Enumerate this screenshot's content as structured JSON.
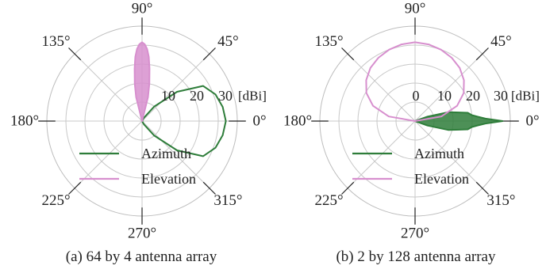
{
  "figure": {
    "captions": [
      "(a) 64 by 4 antenna array",
      "(b) 2 by 128 antenna array"
    ]
  },
  "colors": {
    "azimuth": "#2e7d3a",
    "elevation": "#d78fce",
    "grid": "#c8c8c8",
    "axis": "#222222"
  },
  "chart_data": [
    {
      "type": "polar-line",
      "caption": "(a) 64 by 4 antenna array",
      "angle_ticks": [
        "0°",
        "45°",
        "90°",
        "135°",
        "180°",
        "225°",
        "270°",
        "315°"
      ],
      "angle_tick_values_deg": [
        0,
        45,
        90,
        135,
        180,
        225,
        270,
        315
      ],
      "radial_tick_labels": [
        "10",
        "20",
        "30"
      ],
      "radial_tick_values": [
        10,
        20,
        30
      ],
      "radial_unit": "[dBi]",
      "rlim": [
        -10,
        40
      ],
      "grid": true,
      "legend": {
        "placement": "lower-center",
        "entries": [
          "Azimuth",
          "Elevation"
        ]
      },
      "series": [
        {
          "name": "Azimuth",
          "color": "#2e7d3a",
          "points_deg_dbi": [
            [
              -90,
              -10
            ],
            [
              -75,
              -10
            ],
            [
              -60,
              -8
            ],
            [
              -50,
              0
            ],
            [
              -40,
              14
            ],
            [
              -30,
              27
            ],
            [
              -20,
              31
            ],
            [
              -10,
              33
            ],
            [
              0,
              34
            ],
            [
              10,
              33
            ],
            [
              20,
              31
            ],
            [
              30,
              27
            ],
            [
              40,
              14
            ],
            [
              50,
              0
            ],
            [
              60,
              -8
            ],
            [
              75,
              -10
            ],
            [
              90,
              -10
            ]
          ]
        },
        {
          "name": "Elevation",
          "color": "#d78fce",
          "points_deg_dbi": [
            [
              70,
              -10
            ],
            [
              76,
              3
            ],
            [
              79,
              10
            ],
            [
              82,
              18
            ],
            [
              84,
              24
            ],
            [
              86,
              28
            ],
            [
              88,
              30.5
            ],
            [
              90,
              31.5
            ],
            [
              92,
              30.5
            ],
            [
              94,
              28
            ],
            [
              96,
              24
            ],
            [
              98,
              18
            ],
            [
              101,
              10
            ],
            [
              104,
              3
            ],
            [
              110,
              -10
            ]
          ]
        }
      ]
    },
    {
      "type": "polar-line",
      "caption": "(b) 2 by 128 antenna array",
      "angle_ticks": [
        "0°",
        "45°",
        "90°",
        "135°",
        "180°",
        "225°",
        "270°",
        "315°"
      ],
      "angle_tick_values_deg": [
        0,
        45,
        90,
        135,
        180,
        225,
        270,
        315
      ],
      "radial_tick_labels": [
        "0",
        "10",
        "20",
        "30"
      ],
      "radial_tick_values": [
        0,
        10,
        20,
        30
      ],
      "radial_unit": "[dBi]",
      "rlim": [
        -10,
        40
      ],
      "grid": true,
      "legend": {
        "placement": "lower-center",
        "entries": [
          "Azimuth",
          "Elevation"
        ]
      },
      "series": [
        {
          "name": "Azimuth",
          "color": "#2e7d3a",
          "points_deg_dbi": [
            [
              -30,
              -10
            ],
            [
              -20,
              -3
            ],
            [
              -15,
              8
            ],
            [
              -12,
              12
            ],
            [
              -9,
              18
            ],
            [
              -6,
              20
            ],
            [
              -4,
              23
            ],
            [
              -2,
              27
            ],
            [
              0,
              36
            ],
            [
              2,
              27
            ],
            [
              4,
              23
            ],
            [
              6,
              20
            ],
            [
              9,
              18
            ],
            [
              12,
              12
            ],
            [
              15,
              8
            ],
            [
              20,
              -3
            ],
            [
              30,
              -10
            ]
          ]
        },
        {
          "name": "Elevation",
          "color": "#d78fce",
          "points_deg_dbi": [
            [
              0,
              -10
            ],
            [
              10,
              4
            ],
            [
              20,
              13.5
            ],
            [
              30,
              19.5
            ],
            [
              40,
              23.5
            ],
            [
              50,
              26.5
            ],
            [
              60,
              28.5
            ],
            [
              70,
              30
            ],
            [
              80,
              31
            ],
            [
              90,
              31.5
            ],
            [
              100,
              31
            ],
            [
              110,
              30
            ],
            [
              120,
              28.5
            ],
            [
              130,
              26.5
            ],
            [
              140,
              23.5
            ],
            [
              150,
              19.5
            ],
            [
              160,
              13.5
            ],
            [
              170,
              4
            ],
            [
              180,
              -10
            ]
          ]
        }
      ]
    }
  ]
}
